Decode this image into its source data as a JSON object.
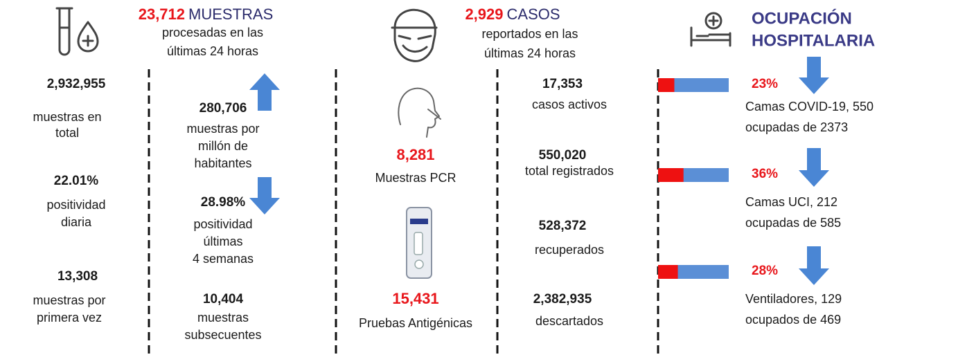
{
  "tests": {
    "count": "23,712",
    "title": "MUESTRAS",
    "subtitle": [
      "procesadas en las",
      "últimas 24 horas"
    ]
  },
  "left_stats": [
    {
      "value": "2,932,955",
      "label": [
        "muestras en",
        "total"
      ]
    },
    {
      "value": "22.01%",
      "label": [
        "positividad",
        "diaria"
      ]
    },
    {
      "value": "13,308",
      "label": [
        "muestras por",
        "primera vez"
      ]
    }
  ],
  "test_stats": [
    {
      "value": "280,706",
      "label": [
        "muestras por",
        "millón de",
        "habitantes"
      ]
    },
    {
      "value": "28.98%",
      "label": [
        "positividad",
        "últimas",
        "4 semanas"
      ]
    },
    {
      "value": "10,404",
      "label": [
        "muestras",
        "subsecuentes"
      ]
    }
  ],
  "cases": {
    "count": "2,929",
    "title": "CASOS",
    "subtitle": [
      "reportados en las",
      "últimas 24 horas"
    ]
  },
  "test_types": [
    {
      "value": "8,281",
      "label": "Muestras PCR"
    },
    {
      "value": "15,431",
      "label": "Pruebas Antigénicas"
    }
  ],
  "case_stats": [
    {
      "value": "17,353",
      "label": "casos activos"
    },
    {
      "value": "550,020",
      "label": "total registrados"
    },
    {
      "value": "528,372",
      "label": "recuperados"
    },
    {
      "value": "2,382,935",
      "label": "descartados"
    }
  ],
  "hospital": {
    "title": [
      "OCUPACIÓN",
      "HOSPITALARIA"
    ],
    "items": [
      {
        "percent": 23,
        "percent_label": "23%",
        "lines": [
          "Camas COVID-19, 550",
          "ocupadas de 2373"
        ]
      },
      {
        "percent": 36,
        "percent_label": "36%",
        "lines": [
          "Camas UCI, 212",
          "ocupadas de 585"
        ]
      },
      {
        "percent": 28,
        "percent_label": "28%",
        "lines": [
          "Ventiladores, 129",
          "ocupados de 469"
        ]
      }
    ]
  }
}
